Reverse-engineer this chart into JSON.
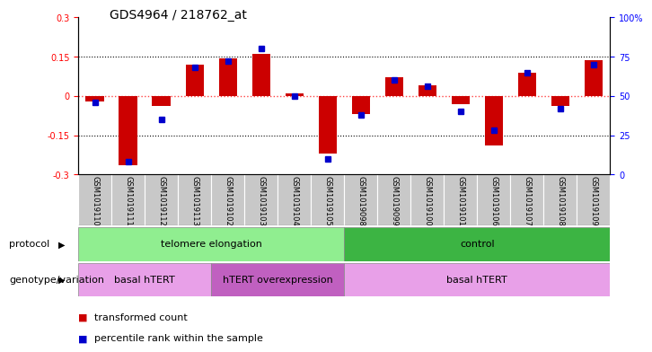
{
  "title": "GDS4964 / 218762_at",
  "samples": [
    "GSM1019110",
    "GSM1019111",
    "GSM1019112",
    "GSM1019113",
    "GSM1019102",
    "GSM1019103",
    "GSM1019104",
    "GSM1019105",
    "GSM1019098",
    "GSM1019099",
    "GSM1019100",
    "GSM1019101",
    "GSM1019106",
    "GSM1019107",
    "GSM1019108",
    "GSM1019109"
  ],
  "transformed_counts": [
    -0.02,
    -0.265,
    -0.04,
    0.12,
    0.145,
    0.16,
    0.01,
    -0.22,
    -0.07,
    0.07,
    0.04,
    -0.03,
    -0.19,
    0.09,
    -0.04,
    0.135
  ],
  "percentile_ranks": [
    46,
    8,
    35,
    68,
    72,
    80,
    50,
    10,
    38,
    60,
    56,
    40,
    28,
    65,
    42,
    70
  ],
  "ylim_left": [
    -0.3,
    0.3
  ],
  "ylim_right": [
    0,
    100
  ],
  "yticks_left": [
    -0.3,
    -0.15,
    0.0,
    0.15,
    0.3
  ],
  "yticks_right": [
    0,
    25,
    50,
    75,
    100
  ],
  "ytick_labels_right": [
    "0",
    "25",
    "50",
    "75",
    "100%"
  ],
  "bar_color": "#cc0000",
  "dot_color": "#0000cc",
  "protocol_groups": [
    {
      "label": "telomere elongation",
      "start": 0,
      "end": 7,
      "color": "#90ee90"
    },
    {
      "label": "control",
      "start": 8,
      "end": 15,
      "color": "#3cb443"
    }
  ],
  "genotype_groups": [
    {
      "label": "basal hTERT",
      "start": 0,
      "end": 3,
      "color": "#e8a0e8"
    },
    {
      "label": "hTERT overexpression",
      "start": 4,
      "end": 7,
      "color": "#c060c0"
    },
    {
      "label": "basal hTERT",
      "start": 8,
      "end": 15,
      "color": "#e8a0e8"
    }
  ],
  "legend_items": [
    "transformed count",
    "percentile rank within the sample"
  ],
  "background_color": "#ffffff",
  "plot_bg_color": "#ffffff",
  "zero_line_color": "#ff4444",
  "tick_bg_color": "#c8c8c8"
}
